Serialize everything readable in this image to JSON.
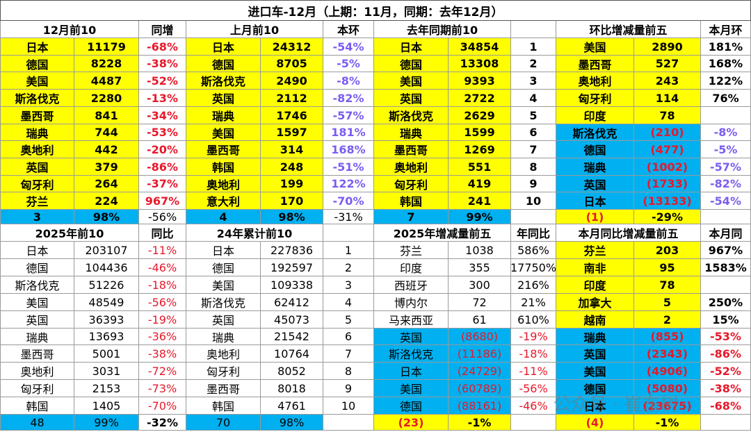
{
  "title": "进口车-12月（上期：11月，同期：去年12月）",
  "top": {
    "headers": [
      "12月前10",
      "同增",
      "上月前10",
      "本环",
      "去年同期前10",
      null,
      "环比增减量前五",
      "本月环"
    ],
    "rows": [
      [
        "日本",
        "11179",
        "-68%",
        "日本",
        "24312",
        "-54%",
        "日本",
        "34854",
        "1",
        "美国",
        "2890",
        "181%"
      ],
      [
        "德国",
        "8228",
        "-38%",
        "德国",
        "8705",
        "-5%",
        "德国",
        "13308",
        "2",
        "墨西哥",
        "527",
        "168%"
      ],
      [
        "美国",
        "4487",
        "-52%",
        "斯洛伐克",
        "2490",
        "-8%",
        "美国",
        "9393",
        "3",
        "奥地利",
        "243",
        "122%"
      ],
      [
        "斯洛伐克",
        "2280",
        "-13%",
        "英国",
        "2112",
        "-82%",
        "英国",
        "2722",
        "4",
        "匈牙利",
        "114",
        "76%"
      ],
      [
        "墨西哥",
        "841",
        "-34%",
        "瑞典",
        "1746",
        "-57%",
        "斯洛伐克",
        "2629",
        "5",
        "印度",
        "78",
        null
      ],
      [
        "瑞典",
        "744",
        "-53%",
        "美国",
        "1597",
        "181%",
        "瑞典",
        "1599",
        "6",
        "斯洛伐克",
        "(210)",
        "-8%"
      ],
      [
        "奥地利",
        "442",
        "-20%",
        "墨西哥",
        "314",
        "168%",
        "墨西哥",
        "1269",
        "7",
        "德国",
        "(477)",
        "-5%"
      ],
      [
        "英国",
        "379",
        "-86%",
        "韩国",
        "248",
        "-51%",
        "奥地利",
        "551",
        "8",
        "瑞典",
        "(1002)",
        "-57%"
      ],
      [
        "匈牙利",
        "264",
        "-37%",
        "奥地利",
        "199",
        "122%",
        "匈牙利",
        "419",
        "9",
        "英国",
        "(1733)",
        "-82%"
      ],
      [
        "芬兰",
        "224",
        "967%",
        "意大利",
        "170",
        "-70%",
        "韩国",
        "241",
        "10",
        "日本",
        "(13133)",
        "-54%"
      ]
    ],
    "summary": [
      "3",
      "98%",
      "-56%",
      "4",
      "98%",
      "-31%",
      "7",
      "99%",
      null,
      "(1)",
      "-29%",
      null
    ]
  },
  "bottom": {
    "headers": [
      "2025年前10",
      "同比",
      "24年累计前10",
      null,
      "2025年增减量前五",
      "年同比",
      "本月同比增减量前五",
      "本月同"
    ],
    "rows": [
      [
        "日本",
        "203107",
        "-11%",
        "日本",
        "227836",
        "1",
        "芬兰",
        "1038",
        "586%",
        "芬兰",
        "203",
        "967%"
      ],
      [
        "德国",
        "104436",
        "-46%",
        "德国",
        "192597",
        "2",
        "印度",
        "355",
        "17750%",
        "南非",
        "95",
        "1583%"
      ],
      [
        "斯洛伐克",
        "51226",
        "-18%",
        "美国",
        "109338",
        "3",
        "西班牙",
        "300",
        "216%",
        "印度",
        "78",
        null
      ],
      [
        "美国",
        "48549",
        "-56%",
        "斯洛伐克",
        "62412",
        "4",
        "博内尔",
        "72",
        "21%",
        "加拿大",
        "5",
        "250%"
      ],
      [
        "英国",
        "36393",
        "-19%",
        "英国",
        "45073",
        "5",
        "马来西亚",
        "61",
        "610%",
        "越南",
        "2",
        "15%"
      ],
      [
        "瑞典",
        "13693",
        "-36%",
        "瑞典",
        "21542",
        "6",
        "英国",
        "(8680)",
        "-19%",
        "瑞典",
        "(855)",
        "-53%"
      ],
      [
        "墨西哥",
        "5001",
        "-38%",
        "奥地利",
        "10764",
        "7",
        "斯洛伐克",
        "(11186)",
        "-18%",
        "英国",
        "(2343)",
        "-86%"
      ],
      [
        "奥地利",
        "3031",
        "-72%",
        "匈牙利",
        "8052",
        "8",
        "日本",
        "(24729)",
        "-11%",
        "美国",
        "(4906)",
        "-52%"
      ],
      [
        "匈牙利",
        "2153",
        "-73%",
        "墨西哥",
        "8018",
        "9",
        "美国",
        "(60789)",
        "-56%",
        "德国",
        "(5080)",
        "-38%"
      ],
      [
        "韩国",
        "1405",
        "-70%",
        "韩国",
        "4761",
        "10",
        "德国",
        "(88161)",
        "-46%",
        "日本",
        "(23675)",
        "-68%"
      ]
    ],
    "summary": [
      "48",
      "99%",
      "-32%",
      "70",
      "98%",
      null,
      "(23)",
      "-1%",
      null,
      "(4)",
      "-1%",
      null
    ]
  },
  "watermark": "公众号 · 崔东树"
}
